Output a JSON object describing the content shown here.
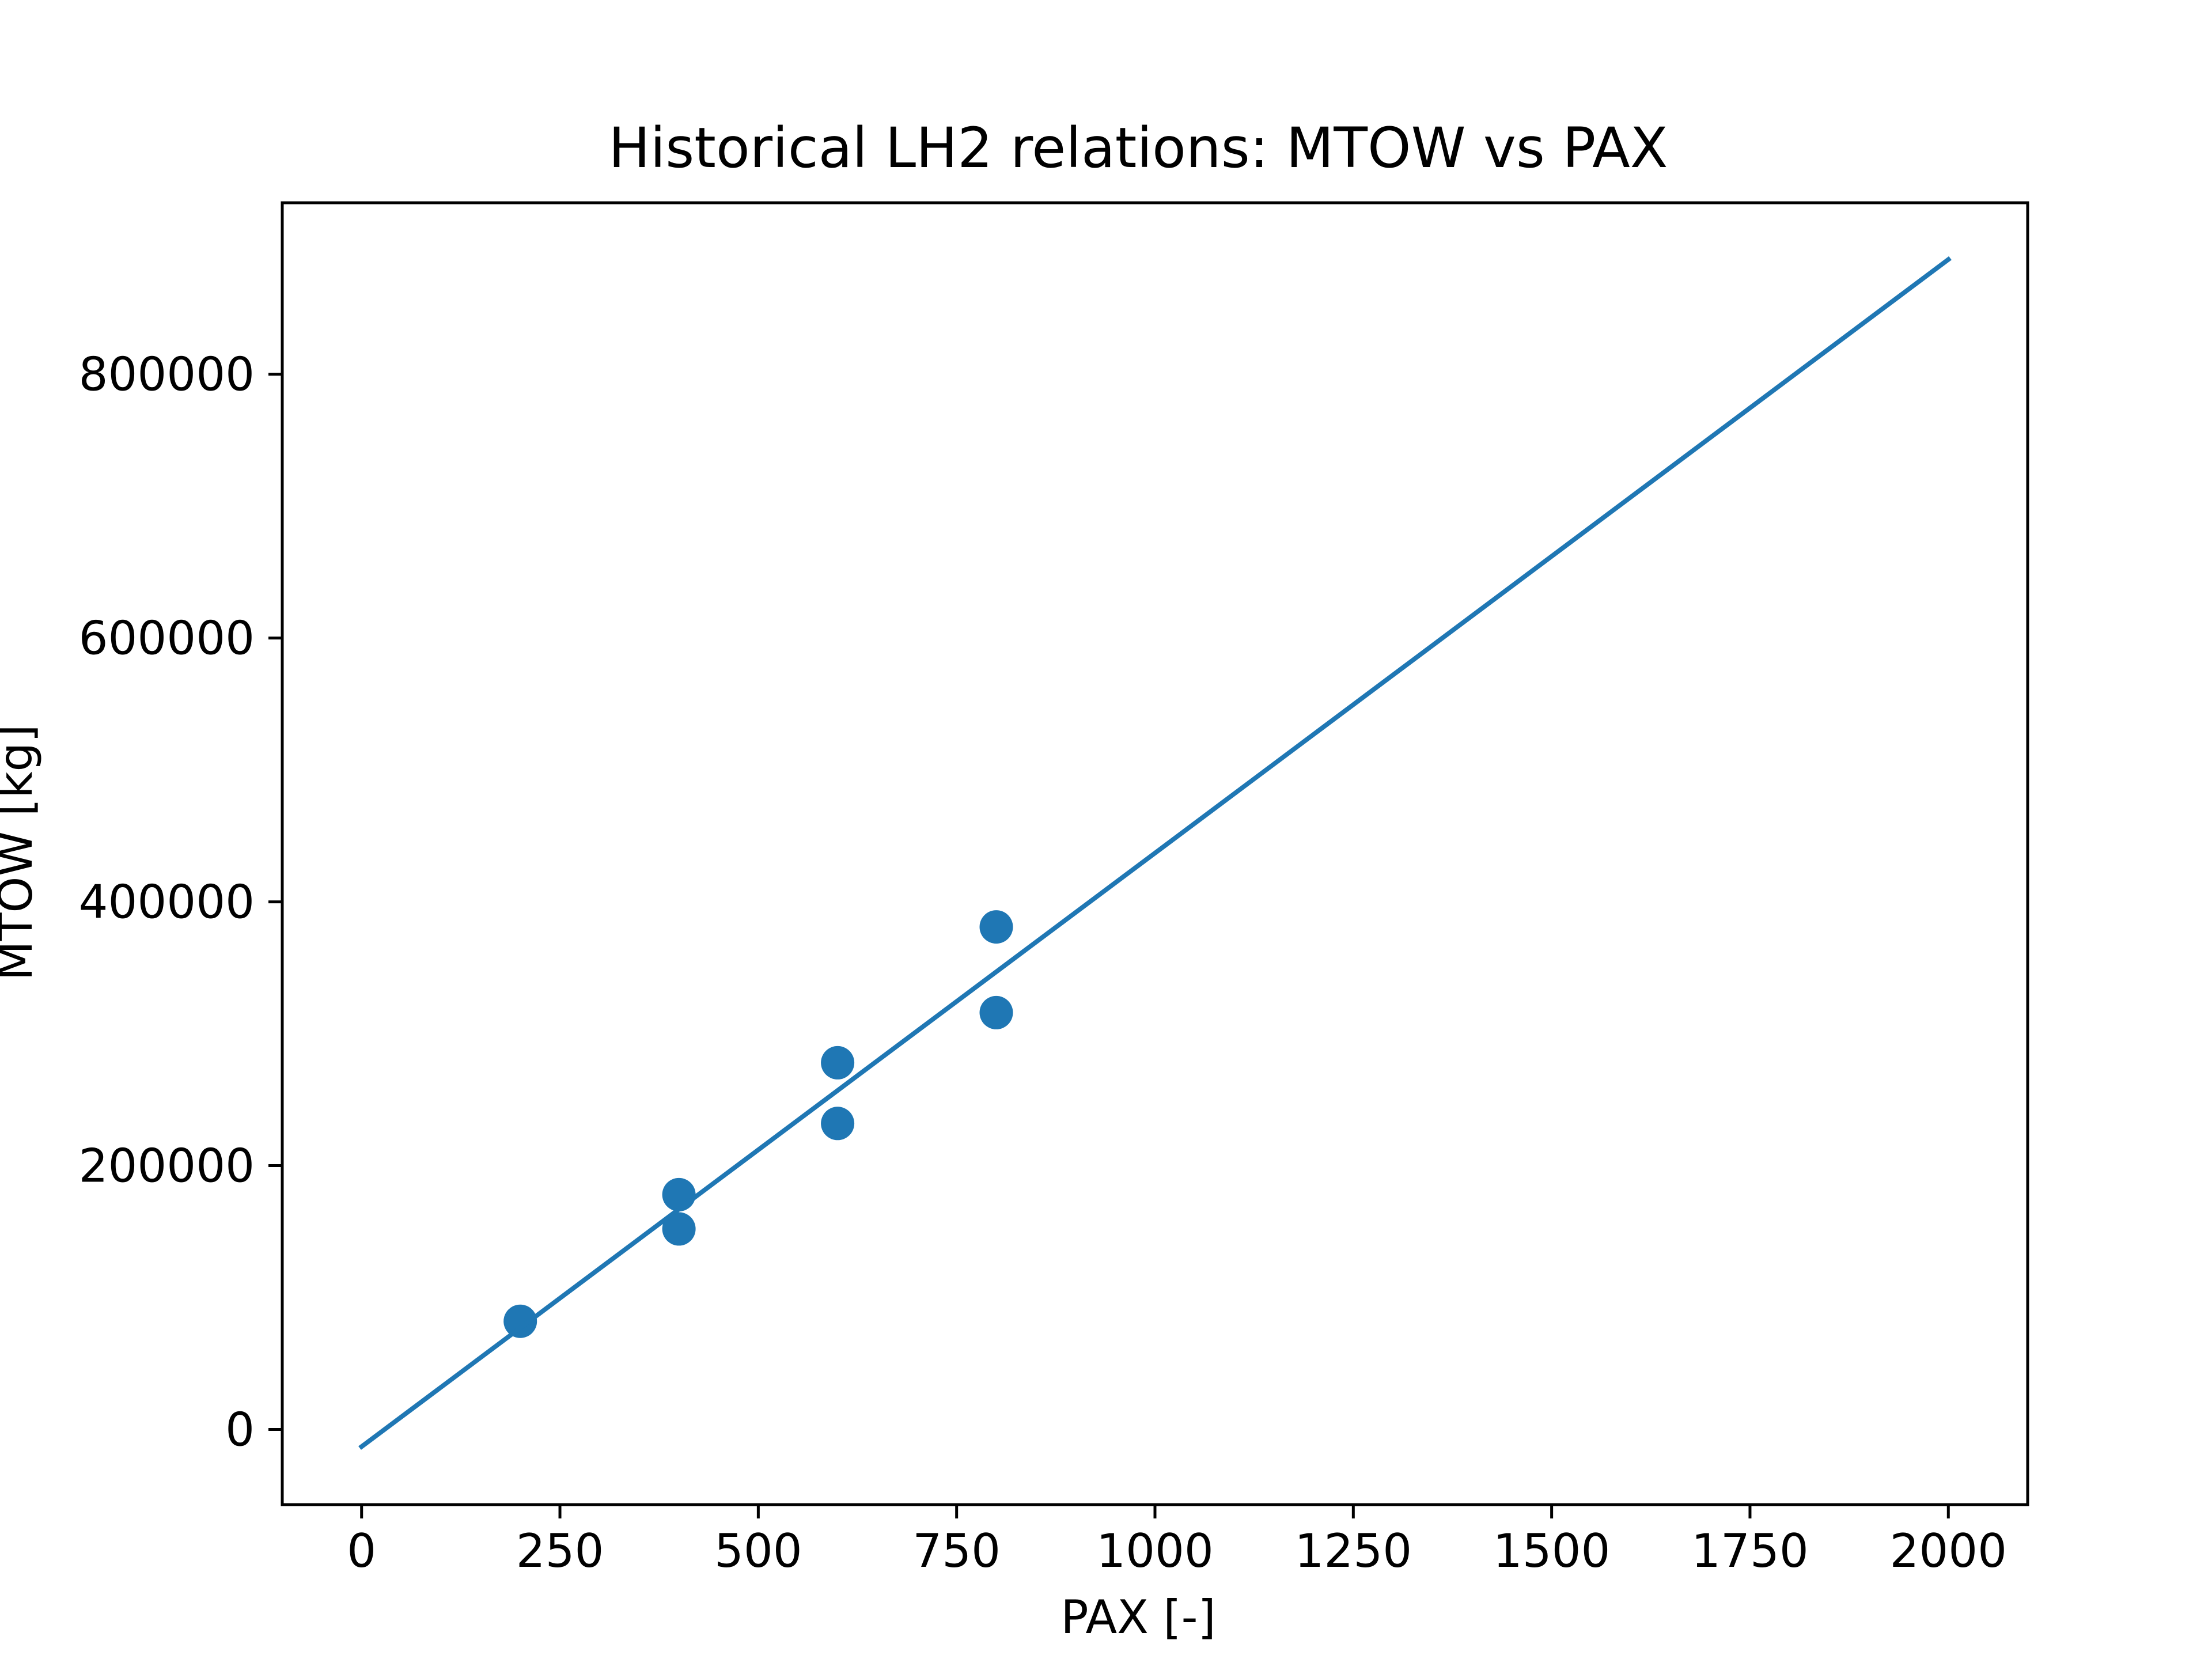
{
  "chart_data": {
    "type": "scatter",
    "title": "Historical LH2 relations: MTOW vs PAX",
    "xlabel": "PAX [-]",
    "ylabel": "MTOW [kg]",
    "xlim": [
      -100,
      2100
    ],
    "ylim": [
      -57000,
      930000
    ],
    "x_ticks": [
      0,
      250,
      500,
      750,
      1000,
      1250,
      1500,
      1750,
      2000
    ],
    "y_ticks": [
      0,
      200000,
      400000,
      600000,
      800000
    ],
    "grid": false,
    "legend": "none",
    "series": [
      {
        "type": "scatter",
        "color": "#1f77b4",
        "points": [
          {
            "x": 200,
            "y": 82000
          },
          {
            "x": 400,
            "y": 178000
          },
          {
            "x": 400,
            "y": 152000
          },
          {
            "x": 600,
            "y": 278000
          },
          {
            "x": 600,
            "y": 232000
          },
          {
            "x": 800,
            "y": 381000
          },
          {
            "x": 800,
            "y": 316000
          }
        ]
      },
      {
        "type": "line",
        "color": "#1f77b4",
        "points": [
          {
            "x": 0,
            "y": -13000
          },
          {
            "x": 2000,
            "y": 887000
          }
        ]
      }
    ]
  }
}
